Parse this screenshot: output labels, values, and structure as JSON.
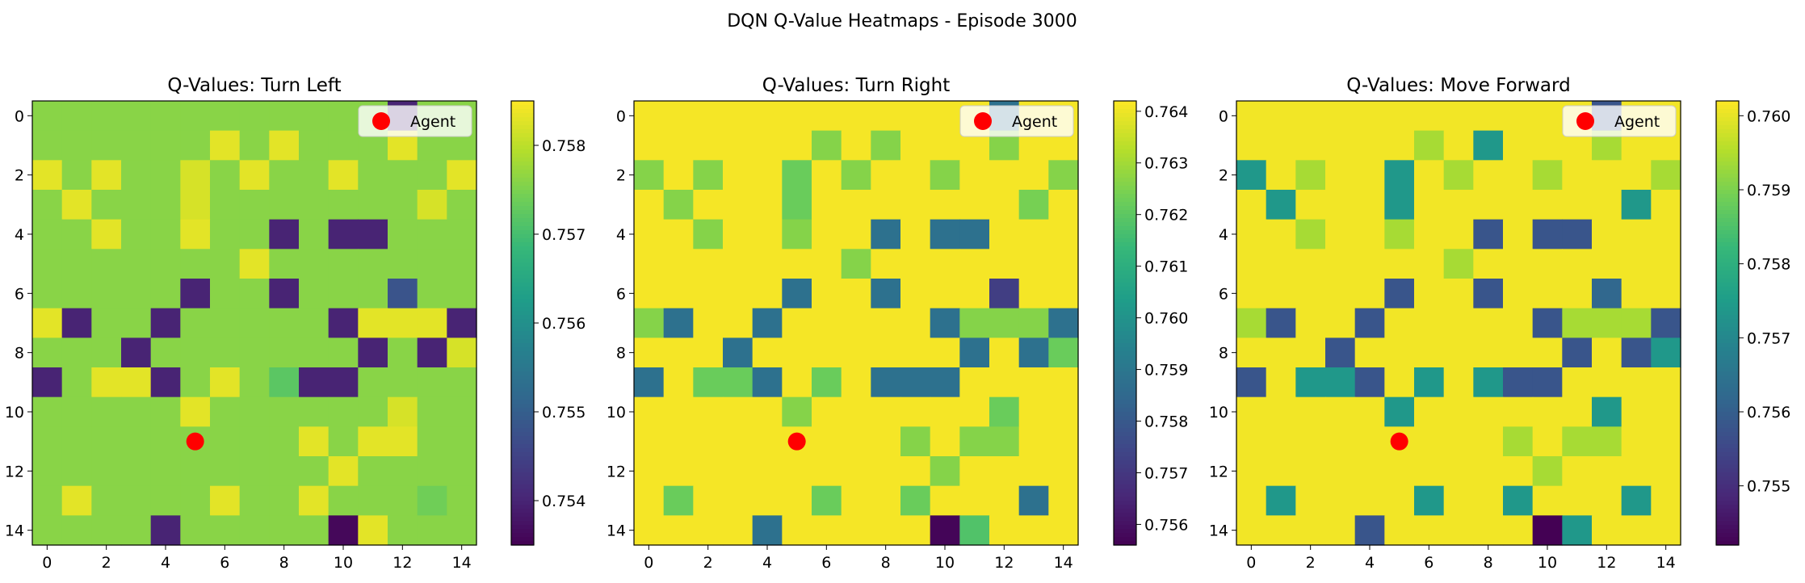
{
  "figure": {
    "title": "DQN Q-Value Heatmaps - Episode 3000"
  },
  "palette": {
    "colormap": "viridis",
    "stops": [
      "#440154",
      "#482878",
      "#3e4989",
      "#31688e",
      "#26828e",
      "#1f9e89",
      "#35b779",
      "#6ece58",
      "#b5de2b",
      "#fde725"
    ],
    "agent_marker": "#ff0000",
    "legend_bg": "#ffffff"
  },
  "chart_data": [
    {
      "type": "heatmap",
      "title": "Q-Values: Turn Left",
      "legend": {
        "label": "Agent",
        "placement": "top-right"
      },
      "agent": {
        "x": 5,
        "y": 11
      },
      "x_ticks": [
        "0",
        "2",
        "4",
        "6",
        "8",
        "10",
        "12",
        "14"
      ],
      "y_ticks": [
        "0",
        "2",
        "4",
        "6",
        "8",
        "10",
        "12",
        "14"
      ],
      "colorbar": {
        "ticks": [
          "0.754",
          "0.755",
          "0.756",
          "0.757",
          "0.758"
        ],
        "tick_values": [
          0.754,
          0.755,
          0.756,
          0.757,
          0.758
        ],
        "range": [
          0.7535,
          0.7585
        ]
      },
      "base_value": 0.7576,
      "values": [
        [
          0.7576,
          0.7576,
          0.7576,
          0.7576,
          0.7576,
          0.7576,
          0.7576,
          0.7576,
          0.7576,
          0.7576,
          0.7576,
          0.7576,
          0.754,
          0.7576,
          0.7576
        ],
        [
          0.7576,
          0.7576,
          0.7576,
          0.7576,
          0.7576,
          0.7576,
          0.7583,
          0.7576,
          0.7583,
          0.7576,
          0.7576,
          0.7576,
          0.7583,
          0.7576,
          0.7576
        ],
        [
          0.7583,
          0.7576,
          0.7583,
          0.7576,
          0.7576,
          0.7582,
          0.7576,
          0.7583,
          0.7576,
          0.7576,
          0.7583,
          0.7576,
          0.7576,
          0.7576,
          0.7583
        ],
        [
          0.7576,
          0.7583,
          0.7576,
          0.7576,
          0.7576,
          0.7582,
          0.7576,
          0.7576,
          0.7576,
          0.7576,
          0.7576,
          0.7576,
          0.7576,
          0.7582,
          0.7576
        ],
        [
          0.7576,
          0.7576,
          0.7583,
          0.7576,
          0.7576,
          0.7583,
          0.7576,
          0.7576,
          0.754,
          0.7576,
          0.754,
          0.754,
          0.7576,
          0.7576,
          0.7576
        ],
        [
          0.7576,
          0.7576,
          0.7576,
          0.7576,
          0.7576,
          0.7576,
          0.7576,
          0.7583,
          0.7576,
          0.7576,
          0.7576,
          0.7576,
          0.7576,
          0.7576,
          0.7576
        ],
        [
          0.7576,
          0.7576,
          0.7576,
          0.7576,
          0.7576,
          0.754,
          0.7576,
          0.7576,
          0.754,
          0.7576,
          0.7576,
          0.7576,
          0.7548,
          0.7576,
          0.7576
        ],
        [
          0.7583,
          0.754,
          0.7576,
          0.7576,
          0.754,
          0.7576,
          0.7576,
          0.7576,
          0.7576,
          0.7576,
          0.754,
          0.7583,
          0.7583,
          0.7583,
          0.754
        ],
        [
          0.7576,
          0.7576,
          0.7576,
          0.754,
          0.7576,
          0.7576,
          0.7576,
          0.7576,
          0.7576,
          0.7576,
          0.7576,
          0.754,
          0.7576,
          0.754,
          0.7582
        ],
        [
          0.754,
          0.7576,
          0.7583,
          0.7583,
          0.754,
          0.7576,
          0.7583,
          0.7576,
          0.7572,
          0.754,
          0.754,
          0.7576,
          0.7576,
          0.7576,
          0.7576
        ],
        [
          0.7576,
          0.7576,
          0.7576,
          0.7576,
          0.7576,
          0.7583,
          0.7576,
          0.7576,
          0.7576,
          0.7576,
          0.7576,
          0.7576,
          0.7582,
          0.7576,
          0.7576
        ],
        [
          0.7576,
          0.7576,
          0.7576,
          0.7576,
          0.7576,
          0.7576,
          0.7576,
          0.7576,
          0.7576,
          0.7583,
          0.7576,
          0.7583,
          0.7583,
          0.7576,
          0.7576
        ],
        [
          0.7576,
          0.7576,
          0.7576,
          0.7576,
          0.7576,
          0.7576,
          0.7576,
          0.7576,
          0.7576,
          0.7576,
          0.7583,
          0.7576,
          0.7576,
          0.7576,
          0.7576
        ],
        [
          0.7576,
          0.7583,
          0.7576,
          0.7576,
          0.7576,
          0.7576,
          0.7583,
          0.7576,
          0.7576,
          0.7583,
          0.7576,
          0.7576,
          0.7576,
          0.7574,
          0.7576
        ],
        [
          0.7576,
          0.7576,
          0.7576,
          0.7576,
          0.754,
          0.7576,
          0.7576,
          0.7576,
          0.7576,
          0.7576,
          0.7536,
          0.7583,
          0.7576,
          0.7576,
          0.7576
        ]
      ]
    },
    {
      "type": "heatmap",
      "title": "Q-Values: Turn Right",
      "legend": {
        "label": "Agent",
        "placement": "top-right"
      },
      "agent": {
        "x": 5,
        "y": 11
      },
      "x_ticks": [
        "0",
        "2",
        "4",
        "6",
        "8",
        "10",
        "12",
        "14"
      ],
      "y_ticks": [
        "0",
        "2",
        "4",
        "6",
        "8",
        "10",
        "12",
        "14"
      ],
      "colorbar": {
        "ticks": [
          "0.756",
          "0.757",
          "0.758",
          "0.759",
          "0.760",
          "0.761",
          "0.762",
          "0.763",
          "0.764"
        ],
        "tick_values": [
          0.756,
          0.757,
          0.758,
          0.759,
          0.76,
          0.761,
          0.762,
          0.763,
          0.764
        ],
        "range": [
          0.7556,
          0.7642
        ]
      },
      "base_value": 0.7641,
      "values": [
        [
          0.7641,
          0.7641,
          0.7641,
          0.7641,
          0.7641,
          0.7641,
          0.7641,
          0.7641,
          0.7641,
          0.7641,
          0.7641,
          0.7641,
          0.7588,
          0.7641,
          0.7641
        ],
        [
          0.7641,
          0.7641,
          0.7641,
          0.7641,
          0.7641,
          0.7641,
          0.7626,
          0.7641,
          0.7626,
          0.7641,
          0.7641,
          0.7641,
          0.7626,
          0.7641,
          0.7641
        ],
        [
          0.7626,
          0.7641,
          0.7626,
          0.7641,
          0.7641,
          0.7622,
          0.7641,
          0.7626,
          0.7641,
          0.7641,
          0.7626,
          0.7641,
          0.7641,
          0.7641,
          0.7626
        ],
        [
          0.7641,
          0.7626,
          0.7641,
          0.7641,
          0.7641,
          0.7622,
          0.7641,
          0.7641,
          0.7641,
          0.7641,
          0.7641,
          0.7641,
          0.7641,
          0.7624,
          0.7641
        ],
        [
          0.7641,
          0.7641,
          0.7626,
          0.7641,
          0.7641,
          0.7626,
          0.7641,
          0.7641,
          0.7588,
          0.7641,
          0.7588,
          0.7588,
          0.7641,
          0.7641,
          0.7641
        ],
        [
          0.7641,
          0.7641,
          0.7641,
          0.7641,
          0.7641,
          0.7641,
          0.7641,
          0.7626,
          0.7641,
          0.7641,
          0.7641,
          0.7641,
          0.7641,
          0.7641,
          0.7641
        ],
        [
          0.7641,
          0.7641,
          0.7641,
          0.7641,
          0.7641,
          0.7588,
          0.7641,
          0.7641,
          0.7588,
          0.7641,
          0.7641,
          0.7641,
          0.7572,
          0.7641,
          0.7641
        ],
        [
          0.7626,
          0.7588,
          0.7641,
          0.7641,
          0.7588,
          0.7641,
          0.7641,
          0.7641,
          0.7641,
          0.7641,
          0.7588,
          0.7626,
          0.7626,
          0.7626,
          0.7588
        ],
        [
          0.7641,
          0.7641,
          0.7641,
          0.7588,
          0.7641,
          0.7641,
          0.7641,
          0.7641,
          0.7641,
          0.7641,
          0.7641,
          0.7588,
          0.7641,
          0.7588,
          0.7622
        ],
        [
          0.7588,
          0.7641,
          0.7622,
          0.7622,
          0.7588,
          0.7641,
          0.7622,
          0.7641,
          0.7588,
          0.7588,
          0.7588,
          0.7641,
          0.7641,
          0.7641,
          0.7641
        ],
        [
          0.7641,
          0.7641,
          0.7641,
          0.7641,
          0.7641,
          0.7626,
          0.7641,
          0.7641,
          0.7641,
          0.7641,
          0.7641,
          0.7641,
          0.7622,
          0.7641,
          0.7641
        ],
        [
          0.7641,
          0.7641,
          0.7641,
          0.7641,
          0.7641,
          0.7641,
          0.7641,
          0.7641,
          0.7641,
          0.7626,
          0.7641,
          0.7626,
          0.7626,
          0.7641,
          0.7641
        ],
        [
          0.7641,
          0.7641,
          0.7641,
          0.7641,
          0.7641,
          0.7641,
          0.7641,
          0.7641,
          0.7641,
          0.7641,
          0.7626,
          0.7641,
          0.7641,
          0.7641,
          0.7641
        ],
        [
          0.7641,
          0.7622,
          0.7641,
          0.7641,
          0.7641,
          0.7641,
          0.7622,
          0.7641,
          0.7641,
          0.7622,
          0.7641,
          0.7641,
          0.7641,
          0.7588,
          0.7641
        ],
        [
          0.7641,
          0.7641,
          0.7641,
          0.7641,
          0.7588,
          0.7641,
          0.7641,
          0.7641,
          0.7641,
          0.7641,
          0.7557,
          0.7618,
          0.7641,
          0.7641,
          0.7641
        ]
      ]
    },
    {
      "type": "heatmap",
      "title": "Q-Values: Move Forward",
      "legend": {
        "label": "Agent",
        "placement": "top-right"
      },
      "agent": {
        "x": 5,
        "y": 11
      },
      "x_ticks": [
        "0",
        "2",
        "4",
        "6",
        "8",
        "10",
        "12",
        "14"
      ],
      "y_ticks": [
        "0",
        "2",
        "4",
        "6",
        "8",
        "10",
        "12",
        "14"
      ],
      "colorbar": {
        "ticks": [
          "0.755",
          "0.756",
          "0.757",
          "0.758",
          "0.759",
          "0.760"
        ],
        "tick_values": [
          0.755,
          0.756,
          0.757,
          0.758,
          0.759,
          0.76
        ],
        "range": [
          0.7542,
          0.7602
        ]
      },
      "base_value": 0.7601,
      "values": [
        [
          0.7601,
          0.7601,
          0.7601,
          0.7601,
          0.7601,
          0.7601,
          0.7601,
          0.7601,
          0.7601,
          0.7601,
          0.7601,
          0.7601,
          0.7558,
          0.7601,
          0.7601
        ],
        [
          0.7601,
          0.7601,
          0.7601,
          0.7601,
          0.7601,
          0.7601,
          0.7594,
          0.7601,
          0.7574,
          0.7601,
          0.7601,
          0.7601,
          0.7594,
          0.7601,
          0.7601
        ],
        [
          0.7574,
          0.7601,
          0.7594,
          0.7601,
          0.7601,
          0.7574,
          0.7601,
          0.7594,
          0.7601,
          0.7601,
          0.7594,
          0.7601,
          0.7601,
          0.7601,
          0.7594
        ],
        [
          0.7601,
          0.7574,
          0.7601,
          0.7601,
          0.7601,
          0.7574,
          0.7601,
          0.7601,
          0.7601,
          0.7601,
          0.7601,
          0.7601,
          0.7601,
          0.7574,
          0.7601
        ],
        [
          0.7601,
          0.7601,
          0.7594,
          0.7601,
          0.7601,
          0.7594,
          0.7601,
          0.7601,
          0.7558,
          0.7601,
          0.7558,
          0.7558,
          0.7601,
          0.7601,
          0.7601
        ],
        [
          0.7601,
          0.7601,
          0.7601,
          0.7601,
          0.7601,
          0.7601,
          0.7601,
          0.7594,
          0.7601,
          0.7601,
          0.7601,
          0.7601,
          0.7601,
          0.7601,
          0.7601
        ],
        [
          0.7601,
          0.7601,
          0.7601,
          0.7601,
          0.7601,
          0.7558,
          0.7601,
          0.7601,
          0.7558,
          0.7601,
          0.7601,
          0.7601,
          0.7562,
          0.7601,
          0.7601
        ],
        [
          0.7594,
          0.7558,
          0.7601,
          0.7601,
          0.7558,
          0.7601,
          0.7601,
          0.7601,
          0.7601,
          0.7601,
          0.7558,
          0.7594,
          0.7594,
          0.7594,
          0.7558
        ],
        [
          0.7601,
          0.7601,
          0.7601,
          0.7558,
          0.7601,
          0.7601,
          0.7601,
          0.7601,
          0.7601,
          0.7601,
          0.7601,
          0.7558,
          0.7601,
          0.7558,
          0.7574
        ],
        [
          0.7558,
          0.7601,
          0.7574,
          0.7574,
          0.7558,
          0.7601,
          0.7574,
          0.7601,
          0.7574,
          0.7558,
          0.7558,
          0.7601,
          0.7601,
          0.7601,
          0.7601
        ],
        [
          0.7601,
          0.7601,
          0.7601,
          0.7601,
          0.7601,
          0.7574,
          0.7601,
          0.7601,
          0.7601,
          0.7601,
          0.7601,
          0.7601,
          0.7574,
          0.7601,
          0.7601
        ],
        [
          0.7601,
          0.7601,
          0.7601,
          0.7601,
          0.7601,
          0.7601,
          0.7601,
          0.7601,
          0.7601,
          0.7594,
          0.7601,
          0.7594,
          0.7594,
          0.7601,
          0.7601
        ],
        [
          0.7601,
          0.7601,
          0.7601,
          0.7601,
          0.7601,
          0.7601,
          0.7601,
          0.7601,
          0.7601,
          0.7601,
          0.7594,
          0.7601,
          0.7601,
          0.7601,
          0.7601
        ],
        [
          0.7601,
          0.7574,
          0.7601,
          0.7601,
          0.7601,
          0.7601,
          0.7574,
          0.7601,
          0.7601,
          0.7574,
          0.7601,
          0.7601,
          0.7601,
          0.7574,
          0.7601
        ],
        [
          0.7601,
          0.7601,
          0.7601,
          0.7601,
          0.7558,
          0.7601,
          0.7601,
          0.7601,
          0.7601,
          0.7601,
          0.7542,
          0.7574,
          0.7601,
          0.7601,
          0.7601
        ]
      ]
    }
  ]
}
